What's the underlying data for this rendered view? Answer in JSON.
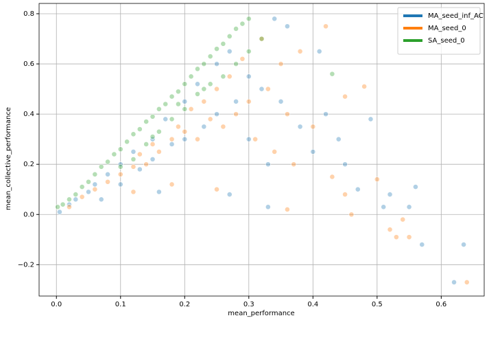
{
  "chart_data": {
    "type": "scatter",
    "x_label": "mean_performance",
    "y_label": "mean_collective_performance",
    "xlim": [
      -0.027,
      0.667
    ],
    "ylim": [
      -0.325,
      0.841
    ],
    "xticks": [
      {
        "value": 0,
        "label": "0.0"
      },
      0.1,
      0.2,
      0.3,
      0.4,
      0.5,
      0.6
    ],
    "yticks": [
      {
        "value": -0.2,
        "label": "−0.2"
      },
      {
        "value": 0,
        "label": "0.0"
      },
      0.2,
      0.4,
      0.6,
      0.8
    ],
    "grid": true,
    "legend": "upper right",
    "series": [
      {
        "name": "MA_seed_inf_AC",
        "color": "#1f77b4",
        "x": [
          0.005,
          0.02,
          0.03,
          0.05,
          0.06,
          0.08,
          0.1,
          0.1,
          0.12,
          0.13,
          0.15,
          0.15,
          0.17,
          0.18,
          0.2,
          0.2,
          0.22,
          0.23,
          0.25,
          0.25,
          0.27,
          0.28,
          0.3,
          0.3,
          0.32,
          0.33,
          0.35,
          0.36,
          0.38,
          0.4,
          0.41,
          0.42,
          0.44,
          0.45,
          0.47,
          0.49,
          0.51,
          0.52,
          0.55,
          0.56,
          0.57,
          0.62,
          0.635,
          0.34,
          0.07,
          0.16,
          0.27,
          0.33
        ],
        "values": [
          0.01,
          0.04,
          0.06,
          0.09,
          0.12,
          0.16,
          0.2,
          0.12,
          0.25,
          0.18,
          0.3,
          0.22,
          0.38,
          0.28,
          0.45,
          0.3,
          0.52,
          0.35,
          0.6,
          0.4,
          0.65,
          0.45,
          0.55,
          0.3,
          0.5,
          0.2,
          0.45,
          0.75,
          0.35,
          0.25,
          0.65,
          0.4,
          0.3,
          0.2,
          0.1,
          0.38,
          0.03,
          0.08,
          0.03,
          0.11,
          -0.12,
          -0.27,
          -0.12,
          0.78,
          0.06,
          0.09,
          0.08,
          0.03
        ]
      },
      {
        "name": "MA_seed_0",
        "color": "#ff7f0e",
        "x": [
          0.02,
          0.04,
          0.06,
          0.08,
          0.1,
          0.12,
          0.13,
          0.14,
          0.15,
          0.16,
          0.18,
          0.19,
          0.2,
          0.21,
          0.22,
          0.23,
          0.24,
          0.25,
          0.26,
          0.27,
          0.28,
          0.29,
          0.3,
          0.31,
          0.32,
          0.33,
          0.34,
          0.35,
          0.36,
          0.37,
          0.38,
          0.4,
          0.42,
          0.43,
          0.45,
          0.45,
          0.46,
          0.48,
          0.5,
          0.52,
          0.53,
          0.55,
          0.54,
          0.64,
          0.12,
          0.18,
          0.25,
          0.36
        ],
        "values": [
          0.03,
          0.07,
          0.1,
          0.13,
          0.16,
          0.19,
          0.24,
          0.2,
          0.28,
          0.25,
          0.3,
          0.35,
          0.33,
          0.42,
          0.3,
          0.45,
          0.38,
          0.5,
          0.35,
          0.55,
          0.4,
          0.62,
          0.45,
          0.3,
          0.7,
          0.5,
          0.25,
          0.6,
          0.4,
          0.2,
          0.65,
          0.35,
          0.75,
          0.15,
          0.47,
          0.08,
          0.0,
          0.51,
          0.14,
          -0.06,
          -0.09,
          -0.09,
          -0.02,
          -0.27,
          0.09,
          0.12,
          0.1,
          0.02
        ]
      },
      {
        "name": "SA_seed_0",
        "color": "#2ca02c",
        "x": [
          0.002,
          0.01,
          0.02,
          0.03,
          0.04,
          0.05,
          0.06,
          0.07,
          0.08,
          0.09,
          0.1,
          0.11,
          0.12,
          0.13,
          0.14,
          0.15,
          0.16,
          0.17,
          0.18,
          0.19,
          0.2,
          0.21,
          0.22,
          0.23,
          0.24,
          0.25,
          0.26,
          0.27,
          0.28,
          0.29,
          0.3,
          0.1,
          0.12,
          0.14,
          0.16,
          0.18,
          0.2,
          0.22,
          0.24,
          0.26,
          0.28,
          0.3,
          0.32,
          0.43,
          0.15,
          0.19,
          0.23
        ],
        "values": [
          0.03,
          0.04,
          0.06,
          0.08,
          0.11,
          0.13,
          0.16,
          0.19,
          0.21,
          0.24,
          0.26,
          0.29,
          0.32,
          0.34,
          0.37,
          0.39,
          0.42,
          0.44,
          0.47,
          0.49,
          0.52,
          0.55,
          0.58,
          0.6,
          0.63,
          0.66,
          0.68,
          0.71,
          0.74,
          0.76,
          0.78,
          0.19,
          0.22,
          0.28,
          0.33,
          0.38,
          0.42,
          0.48,
          0.52,
          0.55,
          0.6,
          0.65,
          0.7,
          0.56,
          0.31,
          0.44,
          0.5
        ]
      }
    ]
  }
}
